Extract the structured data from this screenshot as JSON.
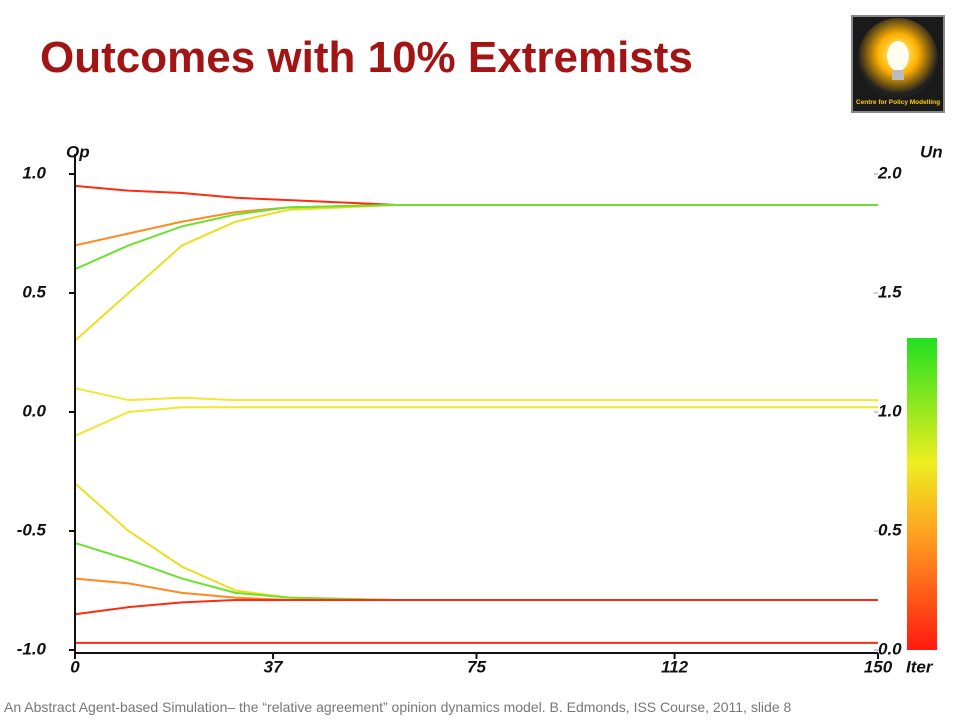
{
  "title": "Outcomes with 10% Extremists",
  "logo_text": "Centre for Policy Modelling",
  "footer": "An Abstract Agent-based Simulation– the “relative agreement” opinion dynamics model. B. Edmonds, ISS Course, 2011, slide 8",
  "chart_data": {
    "type": "line",
    "y_label": "Op",
    "y2_label": "Un",
    "x_label": "Iter",
    "x": [
      0,
      10,
      20,
      30,
      40,
      60,
      100,
      150
    ],
    "xlim": [
      0,
      150
    ],
    "xticks": [
      0,
      37,
      75,
      112,
      150
    ],
    "ylim": [
      -1,
      1
    ],
    "yticks": [
      {
        "value": 1,
        "label": "1.0"
      },
      {
        "value": 0.5,
        "label": "0.5"
      },
      {
        "value": 0,
        "label": "0.0"
      },
      {
        "value": -0.5,
        "label": "-0.5"
      },
      {
        "value": -1,
        "label": "-1.0"
      }
    ],
    "y2lim": [
      0,
      2
    ],
    "y2ticks": [
      {
        "value": 2,
        "label": "2.0"
      },
      {
        "value": 1.5,
        "label": "1.5"
      },
      {
        "value": 1,
        "label": "1.0"
      },
      {
        "value": 0.5,
        "label": "0.5"
      },
      {
        "value": 0,
        "label": "0.0"
      }
    ],
    "series": [
      {
        "color": "#ff2a10",
        "values": [
          0.95,
          0.93,
          0.92,
          0.9,
          0.89,
          0.87,
          0.87,
          0.87
        ]
      },
      {
        "color": "#ff8a20",
        "values": [
          0.7,
          0.75,
          0.8,
          0.84,
          0.86,
          0.87,
          0.87,
          0.87
        ]
      },
      {
        "color": "#e8e020",
        "values": [
          0.3,
          0.5,
          0.7,
          0.8,
          0.85,
          0.87,
          0.87,
          0.87
        ]
      },
      {
        "color": "#6ee030",
        "values": [
          0.6,
          0.7,
          0.78,
          0.83,
          0.86,
          0.87,
          0.87,
          0.87
        ]
      },
      {
        "color": "#f0e830",
        "values": [
          0.1,
          0.05,
          0.06,
          0.05,
          0.05,
          0.05,
          0.05,
          0.05
        ]
      },
      {
        "color": "#f0e830",
        "values": [
          -0.1,
          0.0,
          0.02,
          0.02,
          0.02,
          0.02,
          0.02,
          0.02
        ]
      },
      {
        "color": "#e8e020",
        "values": [
          -0.3,
          -0.5,
          -0.65,
          -0.75,
          -0.78,
          -0.79,
          -0.79,
          -0.79
        ]
      },
      {
        "color": "#6ee030",
        "values": [
          -0.55,
          -0.62,
          -0.7,
          -0.76,
          -0.78,
          -0.79,
          -0.79,
          -0.79
        ]
      },
      {
        "color": "#ff8a20",
        "values": [
          -0.7,
          -0.72,
          -0.76,
          -0.78,
          -0.79,
          -0.79,
          -0.79,
          -0.79
        ]
      },
      {
        "color": "#ff2a10",
        "values": [
          -0.85,
          -0.82,
          -0.8,
          -0.79,
          -0.79,
          -0.79,
          -0.79,
          -0.79
        ]
      },
      {
        "color": "#ff2a10",
        "values": [
          -0.97,
          -0.97,
          -0.97,
          -0.97,
          -0.97,
          -0.97,
          -0.97,
          -0.97
        ]
      }
    ]
  }
}
